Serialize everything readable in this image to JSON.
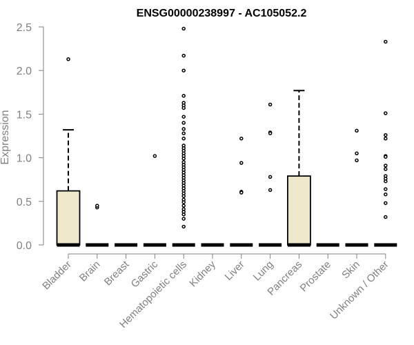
{
  "chart_data": {
    "type": "boxplot",
    "title": "ENSG00000238997 - AC105052.2",
    "ylabel": "Expression",
    "xlabel": "",
    "ylim": [
      0,
      2.5
    ],
    "yticks": [
      "0.0",
      "0.5",
      "1.0",
      "1.5",
      "2.0",
      "2.5"
    ],
    "box_color": "#ede7cc",
    "categories": [
      "Bladder",
      "Brain",
      "Breast",
      "Gastric",
      "Hematopoietic cells",
      "Kidney",
      "Liver",
      "Lung",
      "Pancreas",
      "Prostate",
      "Skin",
      "Unknown / Other"
    ],
    "boxes": [
      {
        "category": "Bladder",
        "min": 0,
        "q1": 0,
        "median": 0,
        "q3": 0.62,
        "max": 1.32,
        "outliers": [
          2.13
        ]
      },
      {
        "category": "Brain",
        "min": 0,
        "q1": 0,
        "median": 0,
        "q3": 0,
        "max": 0,
        "outliers": [
          0.43,
          0.45
        ]
      },
      {
        "category": "Breast",
        "min": 0,
        "q1": 0,
        "median": 0,
        "q3": 0,
        "max": 0,
        "outliers": []
      },
      {
        "category": "Gastric",
        "min": 0,
        "q1": 0,
        "median": 0,
        "q3": 0,
        "max": 0,
        "outliers": [
          1.02
        ]
      },
      {
        "category": "Hematopoietic cells",
        "min": 0,
        "q1": 0,
        "median": 0,
        "q3": 0,
        "max": 0,
        "outliers": [
          2.48,
          2.17,
          2.0,
          1.71,
          1.63,
          1.6,
          1.57,
          1.47,
          1.4,
          1.33,
          1.28,
          1.22,
          1.14,
          1.11,
          1.08,
          1.05,
          1.02,
          0.99,
          0.95,
          0.92,
          0.89,
          0.86,
          0.83,
          0.8,
          0.77,
          0.74,
          0.71,
          0.68,
          0.65,
          0.62,
          0.59,
          0.56,
          0.52,
          0.49,
          0.45,
          0.41,
          0.38,
          0.35,
          0.3,
          0.21
        ]
      },
      {
        "category": "Kidney",
        "min": 0,
        "q1": 0,
        "median": 0,
        "q3": 0,
        "max": 0,
        "outliers": []
      },
      {
        "category": "Liver",
        "min": 0,
        "q1": 0,
        "median": 0,
        "q3": 0,
        "max": 0,
        "outliers": [
          1.22,
          0.94,
          0.61,
          0.6
        ]
      },
      {
        "category": "Lung",
        "min": 0,
        "q1": 0,
        "median": 0,
        "q3": 0,
        "max": 0,
        "outliers": [
          1.61,
          1.29,
          1.28,
          0.78,
          0.63
        ]
      },
      {
        "category": "Pancreas",
        "min": 0,
        "q1": 0,
        "median": 0,
        "q3": 0.79,
        "max": 1.77,
        "outliers": []
      },
      {
        "category": "Prostate",
        "min": 0,
        "q1": 0,
        "median": 0,
        "q3": 0,
        "max": 0,
        "outliers": []
      },
      {
        "category": "Skin",
        "min": 0,
        "q1": 0,
        "median": 0,
        "q3": 0,
        "max": 0,
        "outliers": [
          1.31,
          1.05,
          0.97
        ]
      },
      {
        "category": "Unknown / Other",
        "min": 0,
        "q1": 0,
        "median": 0,
        "q3": 0,
        "max": 0,
        "outliers": [
          2.33,
          1.51,
          1.26,
          1.22,
          1.02,
          1.01,
          0.91,
          0.87,
          0.79,
          0.76,
          0.73,
          0.64,
          0.58,
          0.48,
          0.32
        ]
      }
    ]
  }
}
